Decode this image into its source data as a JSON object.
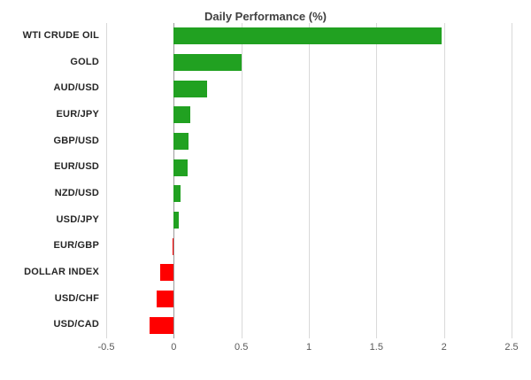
{
  "title": "Daily Performance (%)",
  "chart_data": {
    "type": "bar",
    "orientation": "horizontal",
    "title": "Daily Performance (%)",
    "categories": [
      "WTI CRUDE OIL",
      "GOLD",
      "AUD/USD",
      "EUR/JPY",
      "GBP/USD",
      "EUR/USD",
      "NZD/USD",
      "USD/JPY",
      "EUR/GBP",
      "DOLLAR INDEX",
      "USD/CHF",
      "USD/CAD"
    ],
    "values": [
      1.98,
      0.5,
      0.25,
      0.12,
      0.11,
      0.1,
      0.05,
      0.04,
      -0.01,
      -0.1,
      -0.13,
      -0.18
    ],
    "xlabel": "",
    "ylabel": "",
    "xlim": [
      -0.5,
      2.5
    ],
    "ticks": [
      -0.5,
      0,
      0.5,
      1,
      1.5,
      2,
      2.5
    ],
    "tick_labels": [
      "-0.5",
      "0",
      "0.5",
      "1",
      "1.5",
      "2",
      "2.5"
    ],
    "grid": true,
    "legend": "none",
    "colors": {
      "positive": "#21a121",
      "negative": "#ff0000",
      "gridline": "#d9d9d9",
      "zero_axis": "#9b9b9b",
      "title_text": "#404040",
      "category_text": "#262626",
      "tick_text": "#595959",
      "background": "#ffffff"
    }
  }
}
